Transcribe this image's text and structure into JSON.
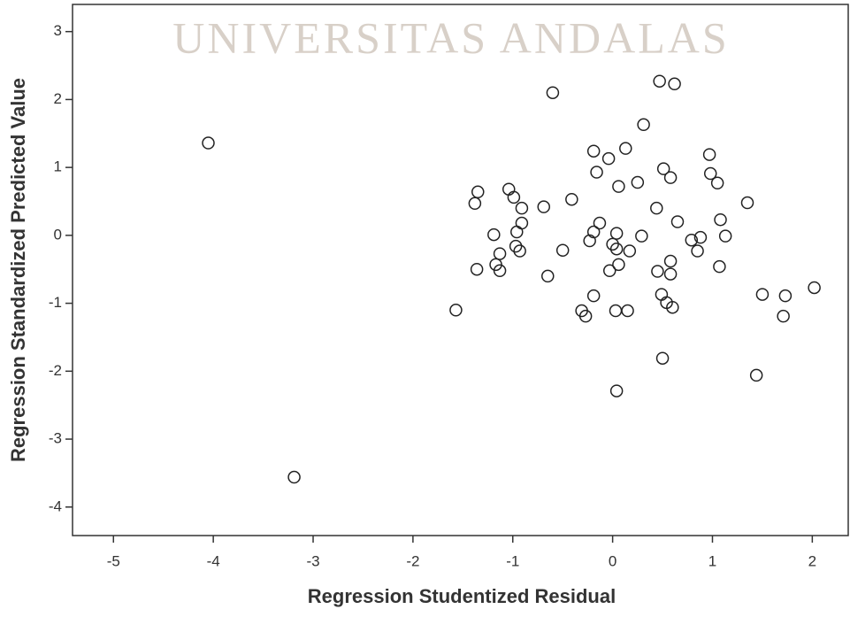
{
  "chart_data": {
    "type": "scatter",
    "watermark": "UNIVERSITAS ANDALAS",
    "xlabel": "Regression Studentized Residual",
    "ylabel": "Regression Standardized Predicted Value",
    "xlim": [
      -5.41,
      2.36
    ],
    "ylim": [
      -4.42,
      3.4
    ],
    "xticks": [
      -5,
      -4,
      -3,
      -2,
      -1,
      0,
      1,
      2
    ],
    "yticks": [
      3,
      2,
      1,
      0,
      -1,
      -2,
      -3,
      -4
    ],
    "color": "#222222",
    "x": [
      -4.05,
      -3.19,
      -0.6,
      0.47,
      0.62,
      0.31,
      -0.19,
      -0.04,
      0.13,
      -0.16,
      0.51,
      0.97,
      0.58,
      0.98,
      1.05,
      0.25,
      0.06,
      -1.35,
      -1.04,
      -0.99,
      -1.38,
      -0.91,
      -0.69,
      -0.41,
      0.44,
      1.35,
      0.65,
      1.08,
      -0.13,
      -0.19,
      0.04,
      0.29,
      0.79,
      0.88,
      1.13,
      -1.19,
      -0.96,
      -0.91,
      -0.23,
      0.0,
      0.04,
      0.17,
      0.85,
      -0.97,
      -0.93,
      -1.13,
      -0.5,
      -1.17,
      -1.13,
      -1.36,
      0.58,
      -0.03,
      0.06,
      0.45,
      0.58,
      -0.65,
      1.07,
      -0.19,
      0.49,
      0.54,
      0.6,
      -0.31,
      -0.27,
      0.03,
      0.15,
      -1.57,
      1.5,
      1.73,
      2.02,
      1.71,
      0.5,
      1.44,
      0.04
    ],
    "y": [
      1.36,
      -3.56,
      2.1,
      2.27,
      2.23,
      1.63,
      1.24,
      1.13,
      1.28,
      0.93,
      0.98,
      1.19,
      0.85,
      0.91,
      0.77,
      0.78,
      0.72,
      0.64,
      0.68,
      0.56,
      0.47,
      0.4,
      0.42,
      0.53,
      0.4,
      0.48,
      0.2,
      0.23,
      0.18,
      0.05,
      0.03,
      -0.01,
      -0.07,
      -0.03,
      -0.01,
      0.01,
      0.05,
      0.18,
      -0.08,
      -0.13,
      -0.2,
      -0.23,
      -0.23,
      -0.16,
      -0.23,
      -0.27,
      -0.22,
      -0.43,
      -0.52,
      -0.5,
      -0.38,
      -0.52,
      -0.43,
      -0.53,
      -0.57,
      -0.6,
      -0.46,
      -0.89,
      -0.87,
      -0.99,
      -1.06,
      -1.11,
      -1.19,
      -1.11,
      -1.11,
      -1.1,
      -0.87,
      -0.89,
      -0.77,
      -1.19,
      -1.81,
      -2.06,
      -2.29
    ]
  }
}
